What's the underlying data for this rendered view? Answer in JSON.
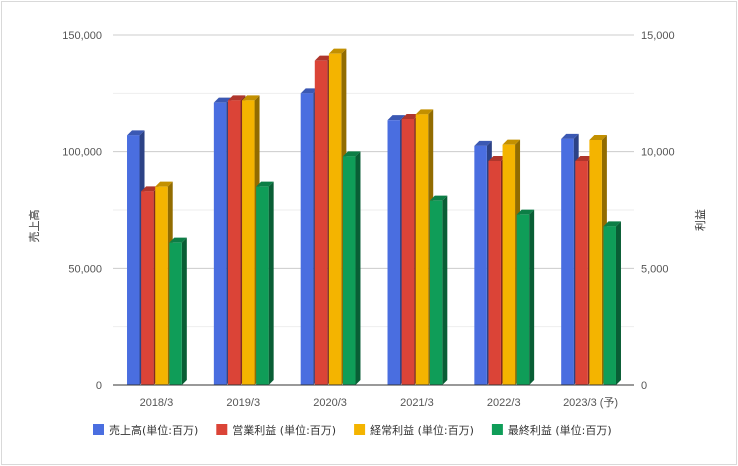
{
  "chart_data": {
    "type": "bar",
    "style": "3d-columns",
    "categories": [
      "2018/3",
      "2019/3",
      "2020/3",
      "2021/3",
      "2022/3",
      "2023/3 (予)"
    ],
    "series": [
      {
        "name": "売上高(単位:百万)",
        "axis": "left",
        "color": "#4a6ee0",
        "values": [
          107000,
          121000,
          125000,
          113500,
          102500,
          105500
        ]
      },
      {
        "name": "営業利益 (単位:百万)",
        "axis": "right",
        "color": "#db4437",
        "values": [
          8300,
          12200,
          13900,
          11400,
          9600,
          9600
        ]
      },
      {
        "name": "経常利益 (単位:百万)",
        "axis": "right",
        "color": "#f4b400",
        "values": [
          8500,
          12200,
          14200,
          11600,
          10300,
          10500
        ]
      },
      {
        "name": "最終利益 (単位:百万)",
        "axis": "right",
        "color": "#0f9d58",
        "values": [
          6100,
          8500,
          9800,
          7900,
          7300,
          6800
        ]
      }
    ],
    "ylabel_left": "売上高",
    "ylabel_right": "利益",
    "ylim_left": [
      0,
      150000
    ],
    "ylim_right": [
      0,
      15000
    ],
    "yticks_left": [
      "0",
      "50,000",
      "100,000",
      "150,000"
    ],
    "yticks_right": [
      "0",
      "5,000",
      "10,000",
      "15,000"
    ],
    "grid": true,
    "legend_position": "bottom"
  }
}
